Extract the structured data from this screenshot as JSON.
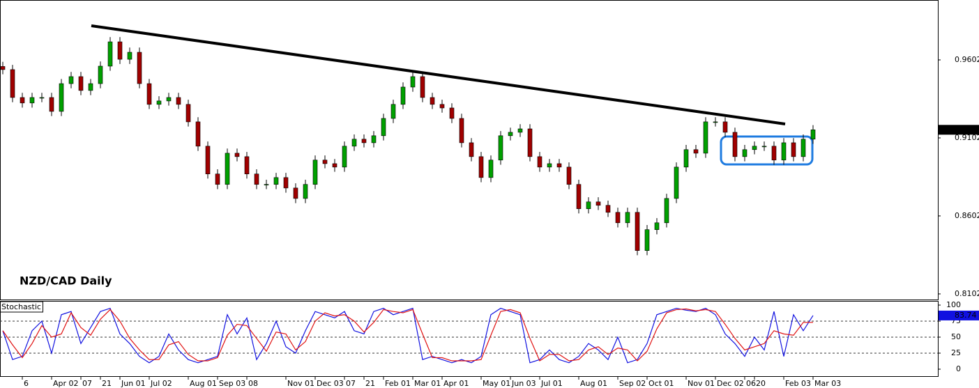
{
  "chart_data": [
    {
      "type": "candlestick",
      "title": "NZD/CAD Daily",
      "up_color": "#00a000",
      "down_color": "#a00000",
      "ylim": [
        0.8066,
        0.9986
      ],
      "yticks": [
        0.9602,
        0.9102,
        0.8602,
        0.8102
      ],
      "categories": [
        null,
        null,
        "6",
        null,
        null,
        "Apr 02",
        null,
        null,
        "07",
        null,
        "21",
        null,
        "Jun 01",
        null,
        null,
        "Jul 02",
        null,
        null,
        null,
        "Aug 01",
        null,
        null,
        "Sep 03",
        null,
        null,
        "08",
        null,
        null,
        null,
        "Nov 01",
        null,
        null,
        "Dec 03",
        null,
        null,
        "07",
        null,
        "21",
        null,
        "Feb 01",
        null,
        null,
        "Mar 01",
        null,
        null,
        "Apr 01",
        null,
        null,
        null,
        "May 01",
        null,
        null,
        "Jun 03",
        null,
        null,
        "Jul 01",
        null,
        null,
        null,
        "Aug 01",
        null,
        null,
        null,
        "Sep 02",
        null,
        null,
        "Oct 01",
        null,
        null,
        null,
        "Nov 01",
        null,
        null,
        "Dec 02",
        null,
        null,
        "06",
        "20",
        null,
        null,
        "Feb 03",
        null,
        null,
        "Mar 03"
      ],
      "open": [
        0.956,
        0.954,
        0.9361,
        0.9326,
        0.9361,
        0.9361,
        0.9272,
        0.945,
        0.9495,
        0.9406,
        0.945,
        0.9562,
        0.9718,
        0.9606,
        0.9651,
        0.945,
        0.9317,
        0.9339,
        0.9361,
        0.9317,
        0.9205,
        0.9049,
        0.8871,
        0.8804,
        0.9004,
        0.8982,
        0.8871,
        0.8804,
        0.8804,
        0.8848,
        0.8781,
        0.8714,
        0.8804,
        0.896,
        0.8937,
        0.8915,
        0.9049,
        0.9094,
        0.9071,
        0.9116,
        0.9227,
        0.9317,
        0.9428,
        0.9495,
        0.9361,
        0.9317,
        0.9294,
        0.9227,
        0.9071,
        0.8982,
        0.8848,
        0.896,
        0.9116,
        0.9138,
        0.916,
        0.8982,
        0.8915,
        0.8937,
        0.8915,
        0.8804,
        0.8648,
        0.8692,
        0.867,
        0.8625,
        0.8558,
        0.8625,
        0.838,
        0.8514,
        0.8558,
        0.8714,
        0.8915,
        0.9027,
        0.9004,
        0.9205,
        0.9205,
        0.9138,
        0.8982,
        0.9027,
        0.9049,
        0.9049,
        0.896,
        0.9071,
        0.8982,
        0.9094
      ],
      "high": [
        0.959,
        0.957,
        0.9391,
        0.9391,
        0.9391,
        0.9391,
        0.948,
        0.9525,
        0.9525,
        0.948,
        0.9592,
        0.9748,
        0.9748,
        0.9681,
        0.9681,
        0.948,
        0.9369,
        0.9391,
        0.9391,
        0.9347,
        0.9235,
        0.9079,
        0.8901,
        0.9034,
        0.9034,
        0.9012,
        0.8901,
        0.8834,
        0.8878,
        0.8878,
        0.8811,
        0.8834,
        0.899,
        0.899,
        0.8967,
        0.9079,
        0.9124,
        0.9124,
        0.9146,
        0.9257,
        0.9347,
        0.9458,
        0.9525,
        0.9525,
        0.9391,
        0.9347,
        0.9324,
        0.9257,
        0.9101,
        0.9012,
        0.899,
        0.9146,
        0.9168,
        0.919,
        0.919,
        0.9012,
        0.8967,
        0.8967,
        0.8945,
        0.8834,
        0.8722,
        0.8722,
        0.87,
        0.8655,
        0.8655,
        0.8655,
        0.8544,
        0.8588,
        0.8744,
        0.8945,
        0.9057,
        0.9057,
        0.9235,
        0.9235,
        0.9235,
        0.9168,
        0.9057,
        0.9079,
        0.9079,
        0.9079,
        0.9101,
        0.9101,
        0.9124,
        0.9184
      ],
      "low": [
        0.951,
        0.9331,
        0.9296,
        0.9296,
        0.9331,
        0.9242,
        0.9242,
        0.942,
        0.9376,
        0.9376,
        0.942,
        0.9532,
        0.9576,
        0.9576,
        0.942,
        0.9287,
        0.9287,
        0.9309,
        0.9287,
        0.9175,
        0.9019,
        0.8841,
        0.8774,
        0.8774,
        0.8952,
        0.8841,
        0.8774,
        0.8774,
        0.8774,
        0.8751,
        0.8684,
        0.8684,
        0.8774,
        0.8907,
        0.8885,
        0.8885,
        0.9019,
        0.9041,
        0.9041,
        0.9086,
        0.9197,
        0.9287,
        0.9398,
        0.9331,
        0.9287,
        0.9264,
        0.9197,
        0.9041,
        0.8952,
        0.8818,
        0.8818,
        0.893,
        0.9086,
        0.9108,
        0.8952,
        0.8885,
        0.8885,
        0.8885,
        0.8774,
        0.8618,
        0.8618,
        0.864,
        0.8595,
        0.8528,
        0.8528,
        0.835,
        0.835,
        0.8484,
        0.8528,
        0.8684,
        0.8885,
        0.8974,
        0.8974,
        0.9175,
        0.9108,
        0.8952,
        0.8952,
        0.8997,
        0.9019,
        0.893,
        0.893,
        0.8952,
        0.8952,
        0.9064
      ],
      "close": [
        0.954,
        0.9361,
        0.9326,
        0.9361,
        0.9361,
        0.9272,
        0.945,
        0.9495,
        0.9406,
        0.945,
        0.9562,
        0.9718,
        0.9606,
        0.9651,
        0.945,
        0.9317,
        0.9339,
        0.9361,
        0.9317,
        0.9205,
        0.9049,
        0.8871,
        0.8804,
        0.9004,
        0.8982,
        0.8871,
        0.8804,
        0.8804,
        0.8848,
        0.8781,
        0.8714,
        0.8804,
        0.896,
        0.8937,
        0.8915,
        0.9049,
        0.9094,
        0.9071,
        0.9116,
        0.9227,
        0.9317,
        0.9428,
        0.9495,
        0.9361,
        0.9317,
        0.9294,
        0.9227,
        0.9071,
        0.8982,
        0.8848,
        0.896,
        0.9116,
        0.9138,
        0.916,
        0.8982,
        0.8915,
        0.8937,
        0.8915,
        0.8804,
        0.8648,
        0.8692,
        0.867,
        0.8625,
        0.8558,
        0.8625,
        0.838,
        0.8514,
        0.8558,
        0.8714,
        0.8915,
        0.9027,
        0.9004,
        0.9205,
        0.9205,
        0.9138,
        0.8982,
        0.9027,
        0.9049,
        0.9049,
        0.896,
        0.9071,
        0.8982,
        0.9094,
        0.9154
      ]
    },
    {
      "type": "line",
      "title": "Stochastic",
      "ylim": [
        -10.9,
        106.5
      ],
      "yticks": [
        100,
        75,
        50,
        25,
        0
      ],
      "levels": [
        75,
        50,
        25
      ],
      "series": [
        {
          "color": "#1010e0",
          "values": [
            60,
            15,
            20,
            60,
            75,
            25,
            85,
            90,
            40,
            65,
            90,
            95,
            55,
            40,
            20,
            10,
            20,
            55,
            30,
            15,
            10,
            15,
            20,
            85,
            55,
            80,
            15,
            40,
            75,
            35,
            25,
            60,
            90,
            85,
            80,
            90,
            60,
            55,
            90,
            95,
            85,
            90,
            95,
            15,
            20,
            15,
            10,
            15,
            10,
            20,
            85,
            95,
            90,
            85,
            10,
            15,
            30,
            15,
            10,
            20,
            40,
            30,
            15,
            50,
            10,
            15,
            40,
            85,
            90,
            95,
            92,
            90,
            95,
            85,
            55,
            40,
            20,
            50,
            30,
            90,
            20,
            85,
            60,
            83.74
          ]
        },
        {
          "color": "#e01010",
          "values": [
            60,
            38,
            18,
            40,
            68,
            50,
            55,
            88,
            65,
            53,
            78,
            93,
            75,
            48,
            30,
            15,
            15,
            38,
            43,
            23,
            13,
            13,
            18,
            53,
            70,
            68,
            48,
            28,
            58,
            55,
            30,
            43,
            75,
            88,
            83,
            85,
            75,
            58,
            73,
            93,
            90,
            88,
            93,
            55,
            18,
            18,
            13,
            13,
            13,
            15,
            53,
            90,
            93,
            88,
            48,
            13,
            23,
            23,
            13,
            15,
            30,
            35,
            23,
            33,
            30,
            13,
            28,
            63,
            88,
            93,
            94,
            91,
            93,
            90,
            70,
            48,
            30,
            35,
            40,
            60,
            55,
            53,
            73,
            73
          ]
        }
      ]
    }
  ]
}
